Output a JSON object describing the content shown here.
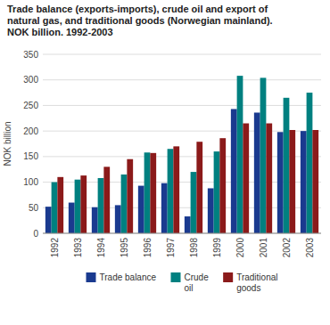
{
  "chart_data": {
    "type": "bar",
    "title": "Trade balance (exports-imports), crude oil and export of\nnatural gas, and traditional goods (Norwegian mainland).\nNOK billion. 1992-2003",
    "ylabel": "NOK billion",
    "categories": [
      "1992",
      "1993",
      "1994",
      "1995",
      "1996",
      "1997",
      "1998",
      "1999",
      "2000",
      "2001",
      "2002",
      "2003"
    ],
    "series": [
      {
        "name": "Trade balance",
        "color": "#1a3a8f",
        "values": [
          52,
          60,
          51,
          55,
          93,
          98,
          33,
          88,
          243,
          236,
          198,
          200
        ]
      },
      {
        "name": "Crude\noil",
        "color": "#008080",
        "values": [
          100,
          105,
          108,
          115,
          158,
          165,
          120,
          160,
          308,
          304,
          265,
          275
        ]
      },
      {
        "name": "Traditional\ngoods",
        "color": "#8b1a1a",
        "values": [
          110,
          113,
          130,
          145,
          157,
          170,
          179,
          186,
          215,
          215,
          202,
          202
        ]
      }
    ],
    "ylim": [
      0,
      350
    ],
    "yticks": [
      0,
      50,
      100,
      150,
      200,
      250,
      300,
      350
    ],
    "grid": true,
    "legend": "bottom"
  }
}
